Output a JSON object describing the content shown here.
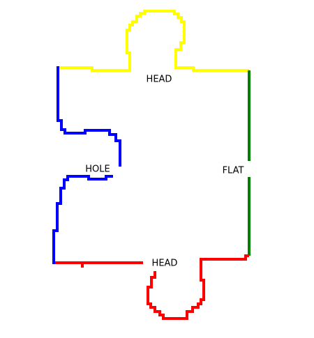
{
  "colors": {
    "top_edge": "#ffff00",
    "right_edge": "#008000",
    "bottom_edge": "#ff0000",
    "left_edge": "#0000ff",
    "background": "#ffffff",
    "label_text": "#000000"
  },
  "edges": {
    "top": {
      "label": "HEAD"
    },
    "right": {
      "label": "FLAT"
    },
    "bottom": {
      "label": "HEAD"
    },
    "left": {
      "label": "HOLE"
    }
  }
}
